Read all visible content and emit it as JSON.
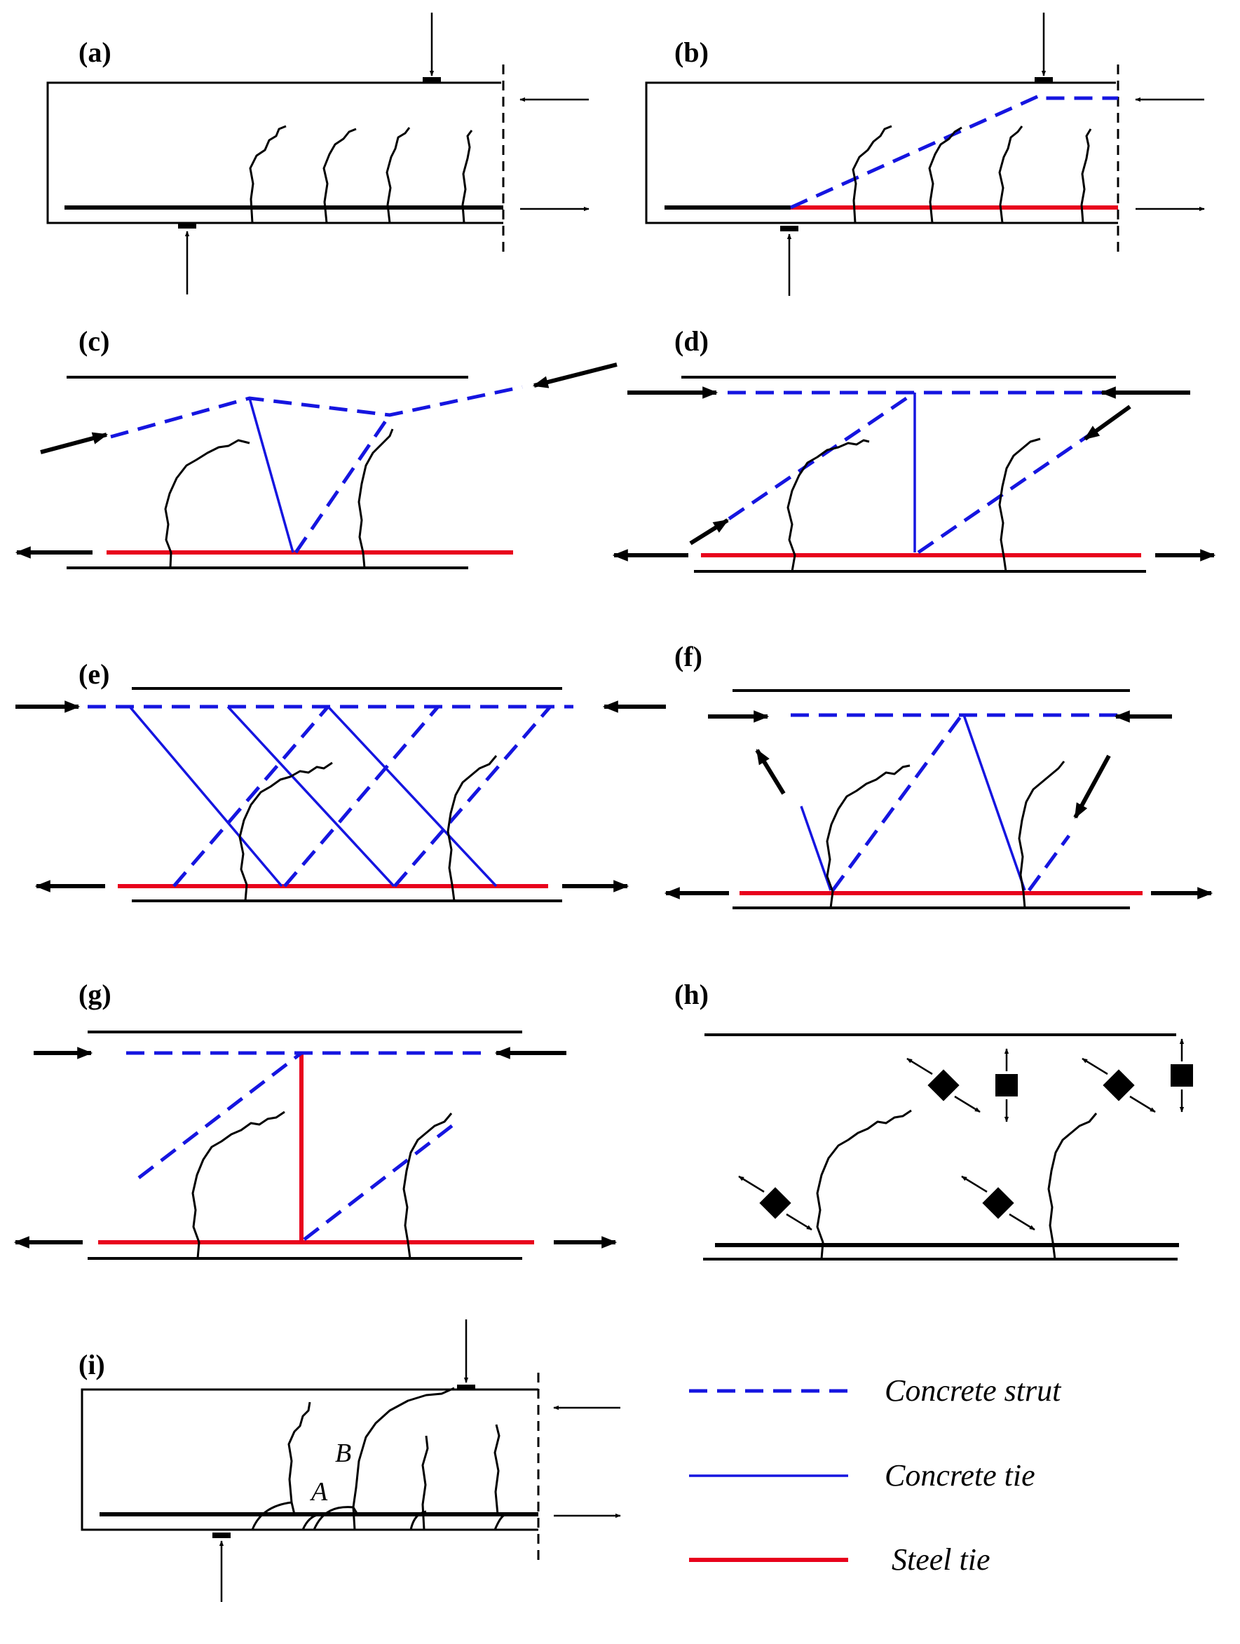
{
  "panels": {
    "a": {
      "label": "(a)"
    },
    "b": {
      "label": "(b)"
    },
    "c": {
      "label": "(c)"
    },
    "d": {
      "label": "(d)"
    },
    "e": {
      "label": "(e)"
    },
    "f": {
      "label": "(f)"
    },
    "g": {
      "label": "(g)"
    },
    "h": {
      "label": "(h)"
    },
    "i": {
      "label": "(i)",
      "point_a": "A",
      "point_b": "B"
    }
  },
  "legend": {
    "strut": "Concrete strut",
    "concrete_tie": "Concrete tie",
    "steel_tie": "Steel tie"
  },
  "colors": {
    "concrete_strut": "#1515e0",
    "concrete_tie": "#1515e0",
    "steel_tie": "#e8001c",
    "outline": "#000000"
  }
}
